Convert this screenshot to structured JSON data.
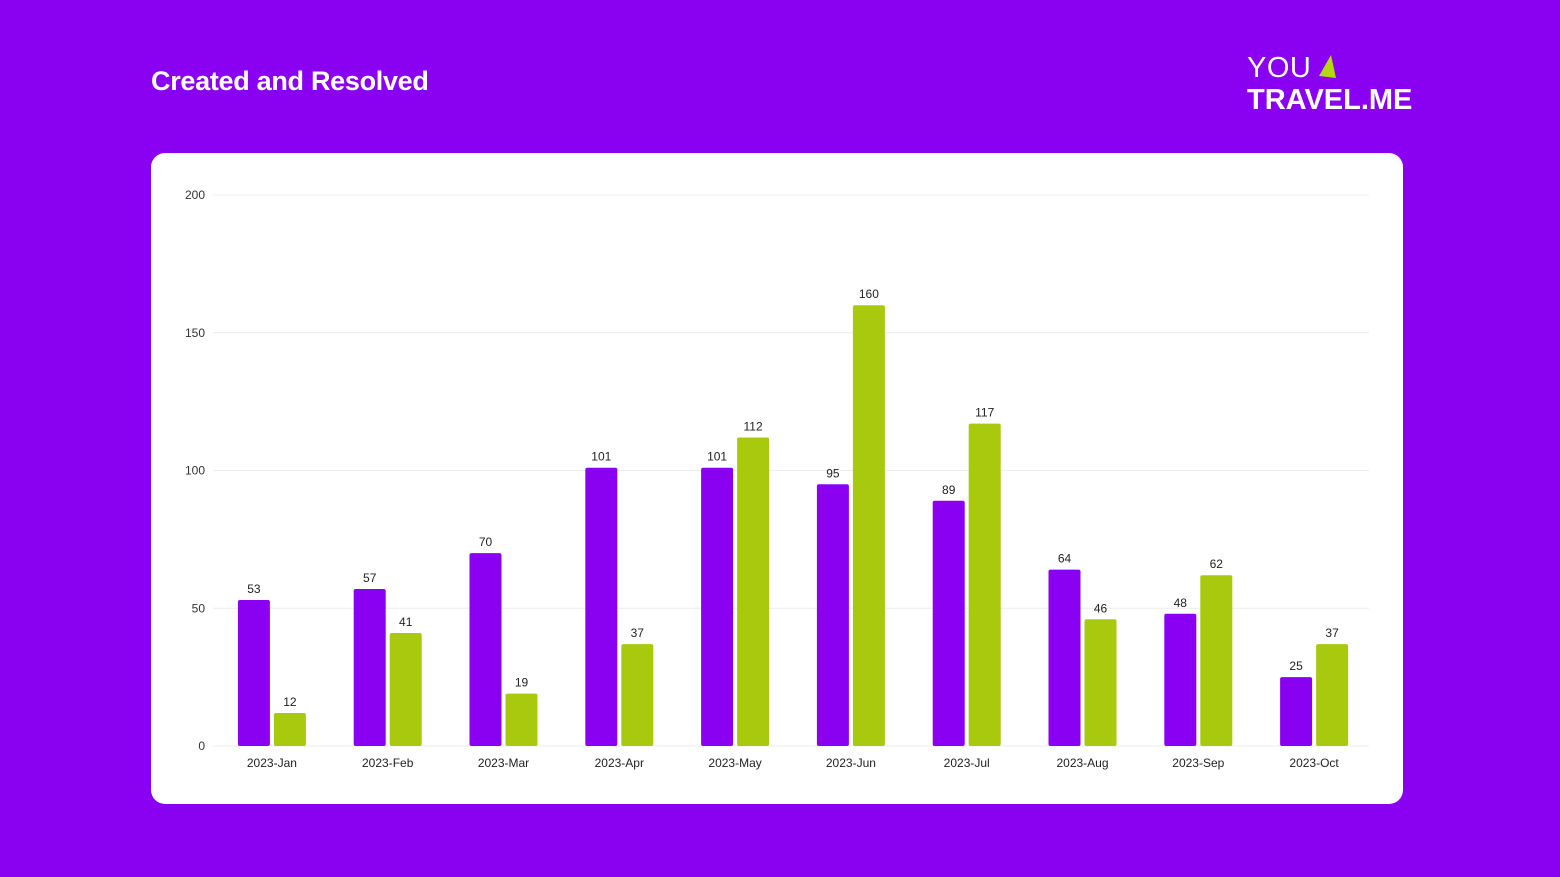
{
  "page": {
    "title": "Created and Resolved",
    "background": "#8a00f0"
  },
  "logo": {
    "line1": "YOU",
    "line2": "TRAVEL.ME",
    "arrow_icon": "navigation-arrow-icon",
    "arrow_color": "#b5d90f"
  },
  "chart_data": {
    "type": "bar",
    "title": "Created and Resolved",
    "xlabel": "",
    "ylabel": "",
    "ylim": [
      0,
      200
    ],
    "yticks": [
      0,
      50,
      100,
      150,
      200
    ],
    "grid": true,
    "categories": [
      "2023-Jan",
      "2023-Feb",
      "2023-Mar",
      "2023-Apr",
      "2023-May",
      "2023-Jun",
      "2023-Jul",
      "2023-Aug",
      "2023-Sep",
      "2023-Oct"
    ],
    "series": [
      {
        "color": "#8a00f0",
        "values": [
          53,
          57,
          70,
          101,
          101,
          95,
          89,
          64,
          48,
          25
        ]
      },
      {
        "color": "#a8c90d",
        "values": [
          12,
          41,
          19,
          37,
          112,
          160,
          117,
          46,
          62,
          37
        ]
      }
    ]
  }
}
